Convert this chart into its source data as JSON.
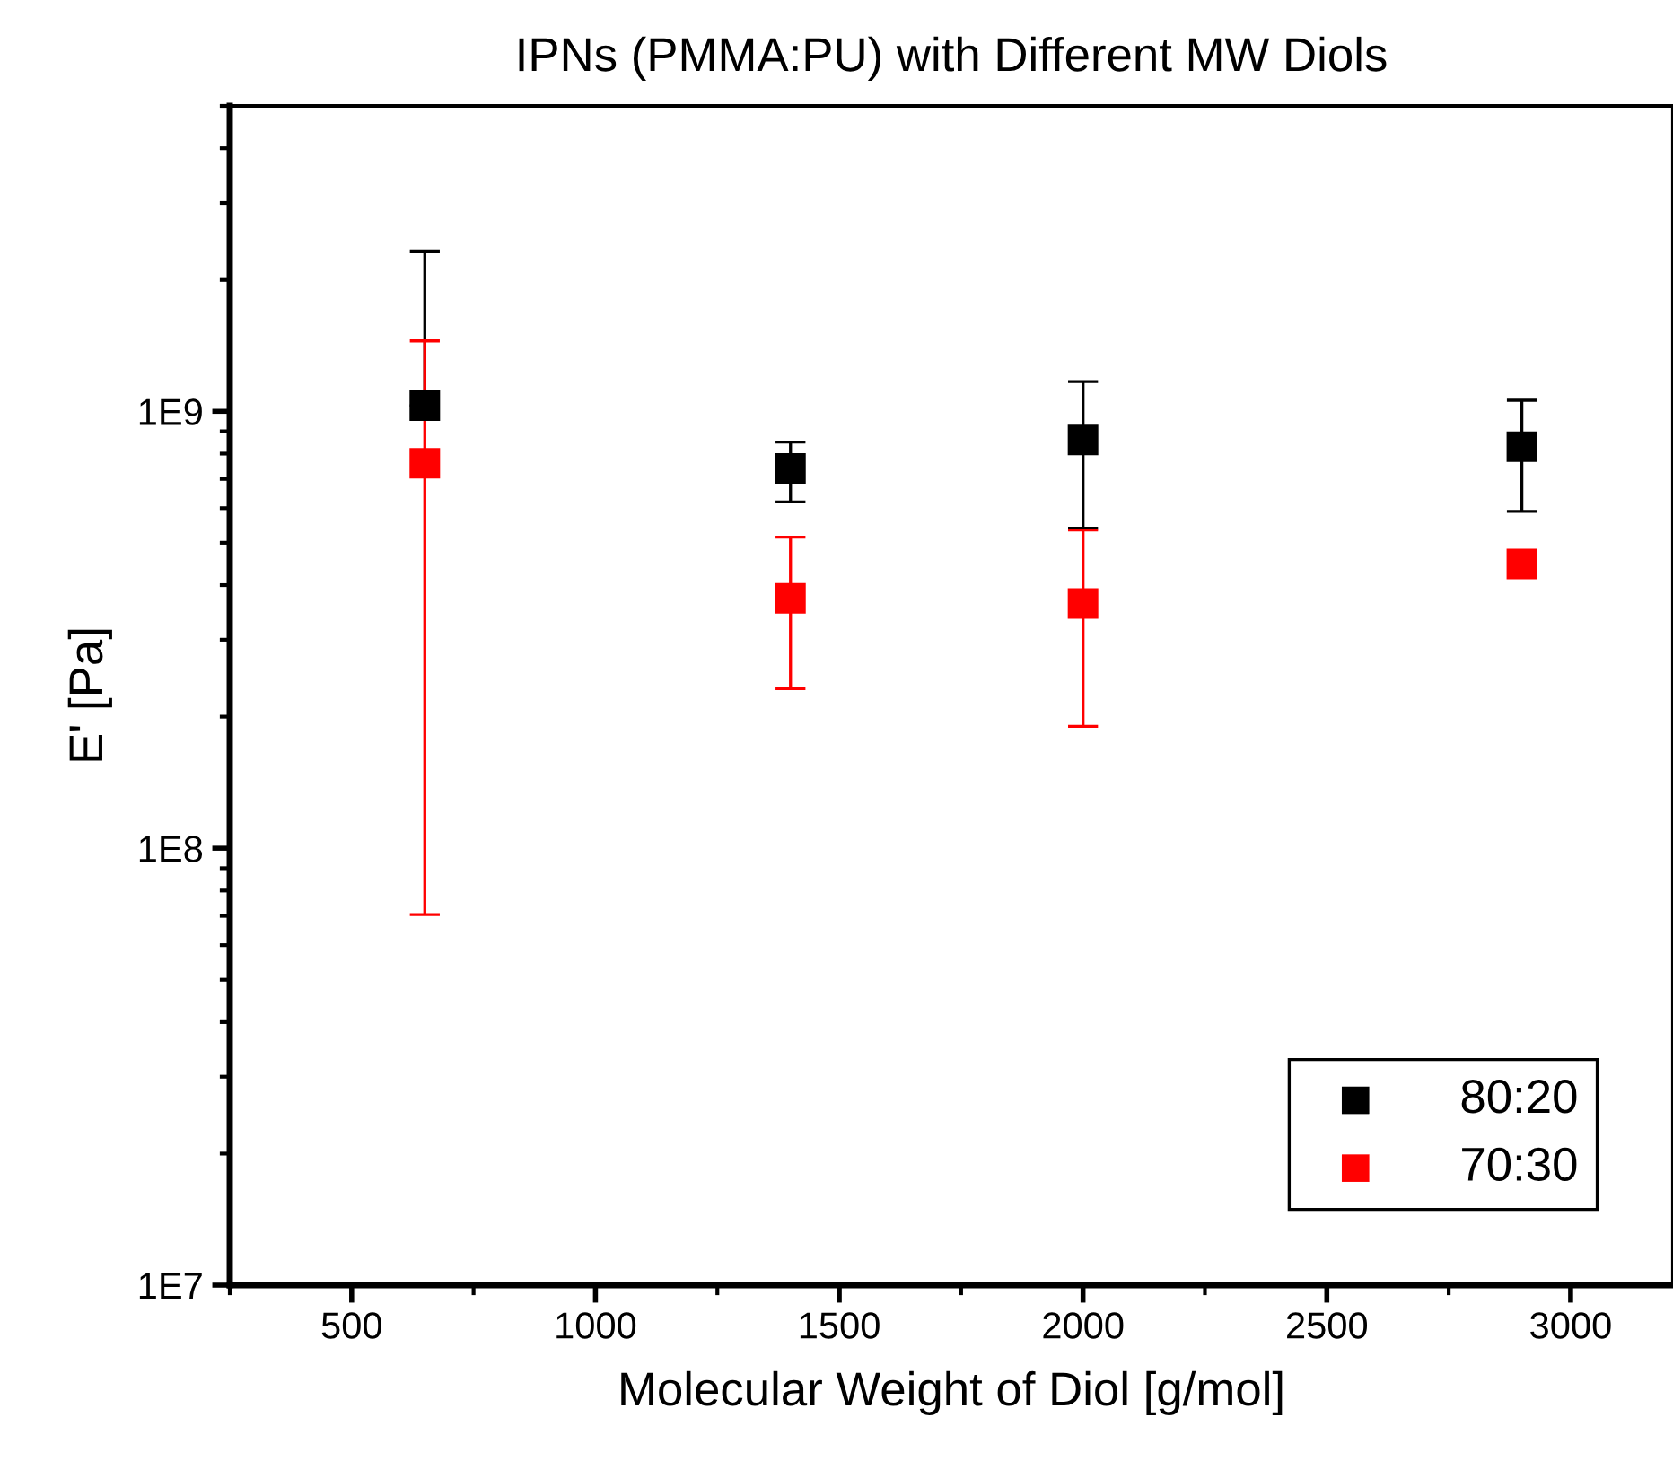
{
  "chart_data": {
    "type": "scatter",
    "title": "IPNs (PMMA:PU) with Different MW Diols",
    "xlabel": "Molecular Weight of Diol [g/mol]",
    "ylabel": "E' [Pa]",
    "x": [
      650,
      1400,
      2000,
      2900
    ],
    "series": [
      {
        "name": "80:20",
        "color": "#000000",
        "values": [
          1030000000.0,
          740000000.0,
          860000000.0,
          830000000.0
        ],
        "errors": [
          [
            1030000000.0,
            2320000000.0
          ],
          [
            620000000.0,
            850000000.0
          ],
          [
            540000000.0,
            1170000000.0
          ],
          [
            590000000.0,
            1060000000.0
          ]
        ]
      },
      {
        "name": "70:30",
        "color": "#ff0000",
        "values": [
          760000000.0,
          373000000.0,
          363000000.0,
          447000000.0
        ],
        "errors": [
          [
            70500000.0,
            1450000000.0
          ],
          [
            232000000.0,
            515000000.0
          ],
          [
            190000000.0,
            535000000.0
          ],
          null
        ]
      }
    ],
    "log": "y",
    "xlim": [
      250,
      3210
    ],
    "ylim": [
      10000000.0,
      5000000000.0
    ],
    "xticks": [
      500,
      1000,
      1500,
      2000,
      2500,
      3000
    ],
    "yticks": [
      {
        "value": 10000000.0,
        "label": "1E7"
      },
      {
        "value": 100000000.0,
        "label": "1E8"
      },
      {
        "value": 1000000000.0,
        "label": "1E9"
      }
    ],
    "marker": "square",
    "grid": false,
    "legend": "bottom right"
  }
}
